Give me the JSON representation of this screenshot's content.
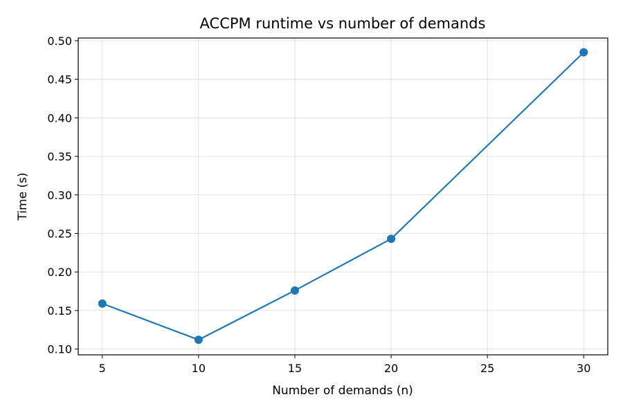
{
  "chart_data": {
    "type": "line",
    "title": "ACCPM runtime vs number of demands",
    "xlabel": "Number of demands (n)",
    "ylabel": "Time (s)",
    "x": [
      5,
      10,
      15,
      20,
      30
    ],
    "series": [
      {
        "values": [
          0.159,
          0.112,
          0.176,
          0.243,
          0.485
        ]
      }
    ],
    "xlim": [
      3.75,
      31.25
    ],
    "ylim": [
      0.0925,
      0.5035
    ],
    "xticks": [
      5,
      10,
      15,
      20,
      25,
      30
    ],
    "yticks": [
      0.1,
      0.15,
      0.2,
      0.25,
      0.3,
      0.35,
      0.4,
      0.45,
      0.5
    ],
    "ytick_decimals": 2,
    "grid": true,
    "markers": true,
    "line_color": "#1f77b4"
  }
}
